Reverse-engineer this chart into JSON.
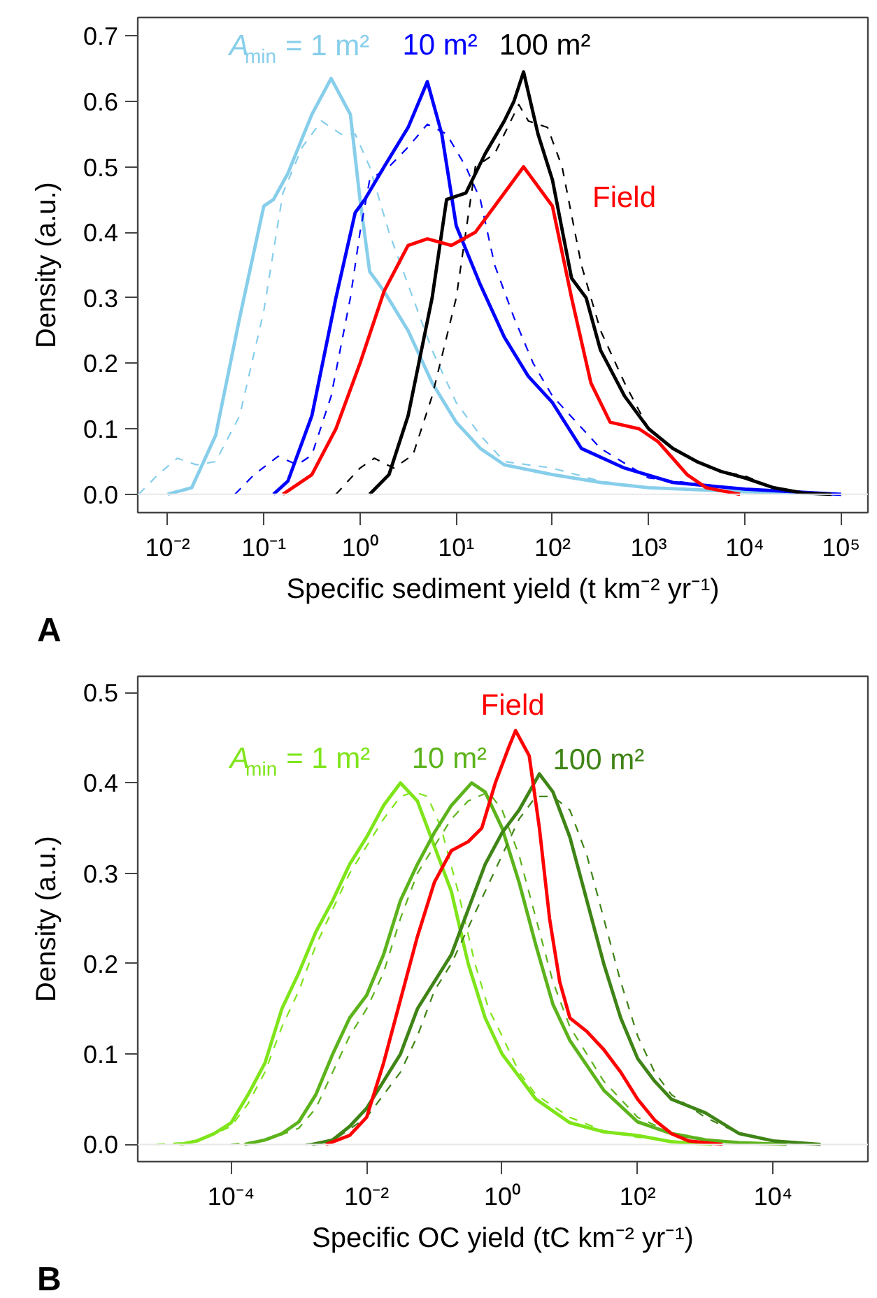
{
  "chart_data": [
    {
      "type": "line",
      "title": "A",
      "xlabel": "Specific sediment yield (t km⁻² yr⁻¹)",
      "ylabel": "Density (a.u.)",
      "log": "x",
      "xlim": [
        0.0049,
        190000
      ],
      "ylim": [
        -0.028,
        0.728
      ],
      "xticks": [
        {
          "value": 0.01,
          "label": "10⁻²"
        },
        {
          "value": 0.1,
          "label": "10⁻¹"
        },
        {
          "value": 1,
          "label": "10⁰"
        },
        {
          "value": 10,
          "label": "10¹"
        },
        {
          "value": 100,
          "label": "10²"
        },
        {
          "value": 1000,
          "label": "10³"
        },
        {
          "value": 10000,
          "label": "10⁴"
        },
        {
          "value": 100000,
          "label": "10⁵"
        }
      ],
      "yticks": [
        {
          "value": 0,
          "label": "0.0"
        },
        0.1,
        0.2,
        0.3,
        0.4,
        0.5,
        0.6,
        0.7
      ],
      "ref_lines": [
        {
          "axis": "y",
          "value": 0,
          "color": "#e8e8e8"
        }
      ],
      "series": [
        {
          "name": "A$_{min}$ = 1 m²",
          "color": "#87ceeb",
          "line_style": "solid",
          "x": [
            0.01,
            0.0178,
            0.0316,
            0.0562,
            0.1,
            0.126,
            0.178,
            0.316,
            0.501,
            0.794,
            1,
            1.26,
            1.78,
            3.16,
            5.62,
            10,
            17.8,
            31.6,
            100,
            316,
            1000,
            10000,
            100000
          ],
          "values": [
            0,
            0.01,
            0.09,
            0.27,
            0.44,
            0.45,
            0.49,
            0.58,
            0.635,
            0.58,
            0.45,
            0.34,
            0.31,
            0.25,
            0.17,
            0.11,
            0.07,
            0.045,
            0.03,
            0.018,
            0.01,
            0.004,
            0
          ]
        },
        {
          "color": "#87ceeb",
          "line_style": "dashed",
          "x": [
            0.00501,
            0.00794,
            0.0126,
            0.02,
            0.0316,
            0.0562,
            0.1,
            0.158,
            0.251,
            0.398,
            0.631,
            0.891,
            1.26,
            2,
            3.16,
            5.62,
            10,
            17.8,
            31.6,
            100,
            316,
            1000,
            10000,
            31600
          ],
          "values": [
            0,
            0.03,
            0.055,
            0.045,
            0.05,
            0.12,
            0.28,
            0.46,
            0.53,
            0.57,
            0.55,
            0.55,
            0.5,
            0.4,
            0.32,
            0.22,
            0.14,
            0.09,
            0.05,
            0.04,
            0.02,
            0.01,
            0.003,
            0
          ]
        },
        {
          "name": "10 m²",
          "color": "#0000ff",
          "line_style": "solid",
          "x": [
            0.126,
            0.178,
            0.316,
            0.562,
            0.891,
            1.12,
            1.78,
            3.16,
            5.01,
            7.08,
            10,
            17.8,
            31.6,
            56.2,
            100,
            200,
            562,
            1780,
            10000,
            100000
          ],
          "values": [
            0,
            0.02,
            0.12,
            0.3,
            0.43,
            0.45,
            0.5,
            0.56,
            0.63,
            0.55,
            0.41,
            0.32,
            0.24,
            0.18,
            0.14,
            0.07,
            0.04,
            0.018,
            0.008,
            0
          ]
        },
        {
          "color": "#0000ff",
          "line_style": "dashed",
          "x": [
            0.0501,
            0.0794,
            0.141,
            0.224,
            0.316,
            0.501,
            0.794,
            1,
            1.26,
            2,
            3.16,
            5.01,
            7.94,
            12.6,
            17.8,
            25.1,
            39.8,
            63.1,
            100,
            316,
            1000,
            10000,
            100000
          ],
          "values": [
            0,
            0.03,
            0.058,
            0.045,
            0.06,
            0.15,
            0.3,
            0.4,
            0.48,
            0.5,
            0.53,
            0.565,
            0.55,
            0.5,
            0.45,
            0.35,
            0.27,
            0.2,
            0.15,
            0.07,
            0.025,
            0.007,
            0
          ]
        },
        {
          "name": "100 m²",
          "color": "#000000",
          "line_style": "solid",
          "x": [
            1.26,
            2,
            3.16,
            5.62,
            7.94,
            12.6,
            20,
            31.6,
            39.8,
            50.1,
            70.8,
            100,
            158,
            224,
            316,
            562,
            1000,
            1780,
            3160,
            5620,
            10000,
            20000,
            39800,
            79400
          ],
          "values": [
            0,
            0.03,
            0.12,
            0.3,
            0.45,
            0.46,
            0.52,
            0.57,
            0.6,
            0.645,
            0.55,
            0.48,
            0.33,
            0.3,
            0.22,
            0.15,
            0.1,
            0.07,
            0.05,
            0.035,
            0.025,
            0.01,
            0.002,
            0
          ]
        },
        {
          "color": "#000000",
          "line_style": "dashed",
          "x": [
            0.562,
            1,
            1.41,
            2.24,
            3.55,
            5.62,
            10,
            15.8,
            25.1,
            44.7,
            56.2,
            89.1,
            126,
            200,
            316,
            562,
            1000,
            1780,
            3160,
            5620,
            10000,
            20000,
            39800,
            79400
          ],
          "values": [
            0,
            0.04,
            0.055,
            0.04,
            0.06,
            0.15,
            0.3,
            0.5,
            0.52,
            0.595,
            0.57,
            0.56,
            0.5,
            0.35,
            0.25,
            0.17,
            0.1,
            0.07,
            0.05,
            0.035,
            0.028,
            0.01,
            0.002,
            0
          ]
        },
        {
          "name": "Field",
          "color": "#ff0000",
          "line_style": "solid",
          "x": [
            0.158,
            0.316,
            0.562,
            1,
            1.78,
            3.16,
            5.01,
            8.91,
            15.8,
            31.6,
            50.1,
            100,
            158,
            251,
            398,
            794,
            1260,
            2510,
            3980,
            8910
          ],
          "values": [
            0,
            0.03,
            0.1,
            0.2,
            0.31,
            0.38,
            0.39,
            0.38,
            0.4,
            0.46,
            0.5,
            0.44,
            0.3,
            0.17,
            0.11,
            0.1,
            0.08,
            0.03,
            0.01,
            0
          ]
        }
      ]
    },
    {
      "type": "line",
      "title": "B",
      "xlabel": "Specific OC yield (tC km⁻² yr⁻¹)",
      "ylabel": "Density (a.u.)",
      "log": "x",
      "xlim": [
        4.2e-06,
        250000
      ],
      "ylim": [
        -0.019,
        0.518
      ],
      "xticks": [
        {
          "value": 0.0001,
          "label": "10⁻⁴"
        },
        {
          "value": 0.01,
          "label": "10⁻²"
        },
        {
          "value": 1,
          "label": "10⁰"
        },
        {
          "value": 100,
          "label": "10²"
        },
        {
          "value": 10000,
          "label": "10⁴"
        }
      ],
      "yticks": [
        {
          "value": 0,
          "label": "0.0"
        },
        0.1,
        0.2,
        0.3,
        0.4,
        0.5
      ],
      "ref_lines": [
        {
          "axis": "y",
          "value": 0,
          "color": "#e8e8e8"
        }
      ],
      "series": [
        {
          "name": "A$_{min}$ = 1 m²",
          "color": "#7fe51a",
          "line_style": "solid",
          "x": [
            1.78e-05,
            3.16e-05,
            5.62e-05,
            0.0001,
            0.000178,
            0.000316,
            0.000562,
            0.001,
            0.00178,
            0.00316,
            0.00562,
            0.01,
            0.0178,
            0.0316,
            0.0562,
            0.1,
            0.178,
            0.316,
            0.562,
            1,
            1.78,
            3.16,
            10,
            31.6,
            100,
            316,
            1260
          ],
          "values": [
            0,
            0.004,
            0.012,
            0.024,
            0.055,
            0.09,
            0.15,
            0.19,
            0.235,
            0.27,
            0.31,
            0.34,
            0.375,
            0.4,
            0.38,
            0.33,
            0.28,
            0.2,
            0.14,
            0.1,
            0.075,
            0.05,
            0.024,
            0.014,
            0.01,
            0.003,
            0
          ]
        },
        {
          "color": "#7fe51a",
          "line_style": "dashed",
          "x": [
            7.94e-06,
            3.16e-05,
            0.0001,
            0.000178,
            0.000316,
            0.000562,
            0.001,
            0.00178,
            0.00316,
            0.00562,
            0.01,
            0.0178,
            0.0316,
            0.0501,
            0.0794,
            0.126,
            0.224,
            0.398,
            0.631,
            1,
            1.78,
            3.16,
            10,
            31.6,
            100,
            316,
            1000
          ],
          "values": [
            0,
            0.003,
            0.02,
            0.045,
            0.08,
            0.13,
            0.17,
            0.22,
            0.26,
            0.3,
            0.33,
            0.36,
            0.385,
            0.39,
            0.385,
            0.35,
            0.28,
            0.2,
            0.15,
            0.12,
            0.08,
            0.055,
            0.03,
            0.015,
            0.008,
            0.004,
            0
          ]
        },
        {
          "name": "10 m²",
          "color": "#5cb31c",
          "line_style": "solid",
          "x": [
            0.000158,
            0.000316,
            0.000562,
            0.001,
            0.00178,
            0.00316,
            0.00562,
            0.01,
            0.0178,
            0.0316,
            0.0562,
            0.1,
            0.178,
            0.355,
            0.562,
            1,
            1.78,
            3.16,
            5.62,
            10,
            31.6,
            100,
            316,
            1000,
            3160,
            15800
          ],
          "values": [
            0,
            0.005,
            0.012,
            0.025,
            0.055,
            0.1,
            0.14,
            0.165,
            0.21,
            0.27,
            0.31,
            0.345,
            0.375,
            0.4,
            0.39,
            0.35,
            0.29,
            0.22,
            0.155,
            0.115,
            0.06,
            0.025,
            0.012,
            0.005,
            0.002,
            0
          ]
        },
        {
          "color": "#5cb31c",
          "line_style": "dashed",
          "x": [
            0.0001,
            0.000316,
            0.001,
            0.00178,
            0.00316,
            0.00562,
            0.01,
            0.0178,
            0.0316,
            0.0562,
            0.1,
            0.178,
            0.316,
            0.631,
            1,
            1.78,
            3.16,
            5.62,
            10,
            31.6,
            100,
            316,
            1000,
            3160,
            15800
          ],
          "values": [
            0,
            0.004,
            0.018,
            0.04,
            0.08,
            0.12,
            0.15,
            0.19,
            0.25,
            0.3,
            0.33,
            0.36,
            0.38,
            0.39,
            0.37,
            0.32,
            0.25,
            0.18,
            0.13,
            0.07,
            0.03,
            0.013,
            0.006,
            0.002,
            0
          ]
        },
        {
          "name": "100 m²",
          "color": "#3f8416",
          "line_style": "solid",
          "x": [
            0.00158,
            0.00316,
            0.00562,
            0.01,
            0.0178,
            0.0316,
            0.0562,
            0.1,
            0.178,
            0.316,
            0.562,
            1,
            1.78,
            3.55,
            5.62,
            10,
            17.8,
            31.6,
            56.2,
            100,
            178,
            316,
            1000,
            3160,
            10000,
            50100
          ],
          "values": [
            0,
            0.005,
            0.02,
            0.04,
            0.07,
            0.1,
            0.15,
            0.18,
            0.21,
            0.26,
            0.31,
            0.345,
            0.37,
            0.41,
            0.39,
            0.34,
            0.27,
            0.2,
            0.14,
            0.095,
            0.07,
            0.05,
            0.035,
            0.012,
            0.004,
            0
          ]
        },
        {
          "color": "#3f8416",
          "line_style": "dashed",
          "x": [
            0.00126,
            0.00316,
            0.01,
            0.0316,
            0.0562,
            0.1,
            0.178,
            0.316,
            0.562,
            1,
            1.78,
            3.16,
            5.62,
            10,
            17.8,
            31.6,
            56.2,
            100,
            178,
            316,
            1000,
            3160,
            10000,
            50100
          ],
          "values": [
            0,
            0.004,
            0.03,
            0.08,
            0.12,
            0.17,
            0.2,
            0.24,
            0.28,
            0.32,
            0.36,
            0.385,
            0.385,
            0.37,
            0.32,
            0.25,
            0.18,
            0.12,
            0.08,
            0.055,
            0.03,
            0.012,
            0.004,
            0
          ]
        },
        {
          "name": "Field",
          "color": "#ff0000",
          "line_style": "solid",
          "x": [
            0.00251,
            0.00562,
            0.01,
            0.0178,
            0.0316,
            0.0562,
            0.1,
            0.178,
            0.316,
            0.501,
            0.794,
            1.26,
            1.58,
            2.51,
            3.55,
            5.01,
            7.08,
            10,
            17.8,
            31.6,
            56.2,
            100,
            178,
            316,
            562,
            1780
          ],
          "values": [
            0,
            0.01,
            0.03,
            0.09,
            0.16,
            0.23,
            0.29,
            0.325,
            0.335,
            0.35,
            0.4,
            0.44,
            0.458,
            0.43,
            0.35,
            0.25,
            0.18,
            0.14,
            0.125,
            0.105,
            0.08,
            0.05,
            0.027,
            0.012,
            0.004,
            0
          ]
        }
      ]
    }
  ]
}
